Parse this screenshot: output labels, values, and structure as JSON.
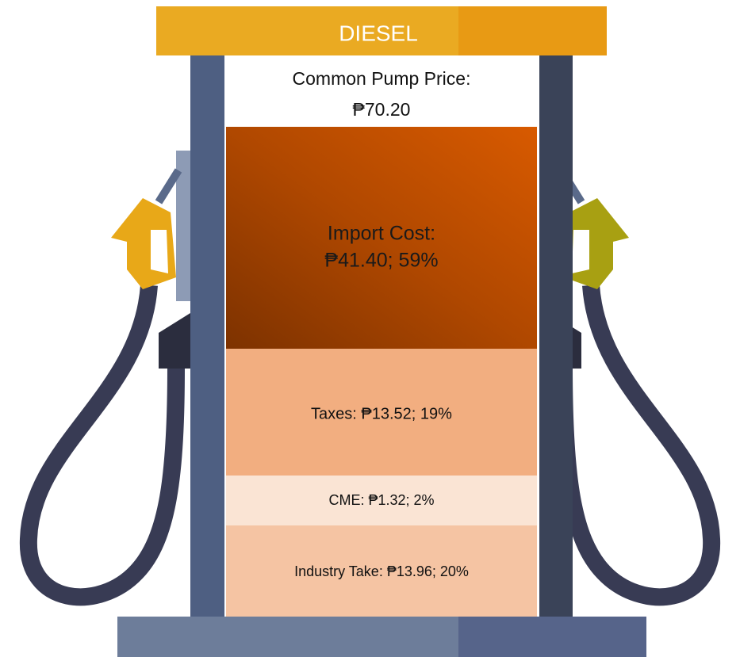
{
  "header": {
    "label": "DIESEL"
  },
  "price": {
    "title": "Common Pump Price:",
    "value": "₱70.20"
  },
  "segments": [
    {
      "label": "Import Cost:",
      "value": "₱41.40; 59%"
    },
    {
      "label": "Taxes: ₱13.52; 19%"
    },
    {
      "label": "CME: ₱1.32; 2%"
    },
    {
      "label": "Industry Take: ₱13.96; 20%"
    }
  ]
}
